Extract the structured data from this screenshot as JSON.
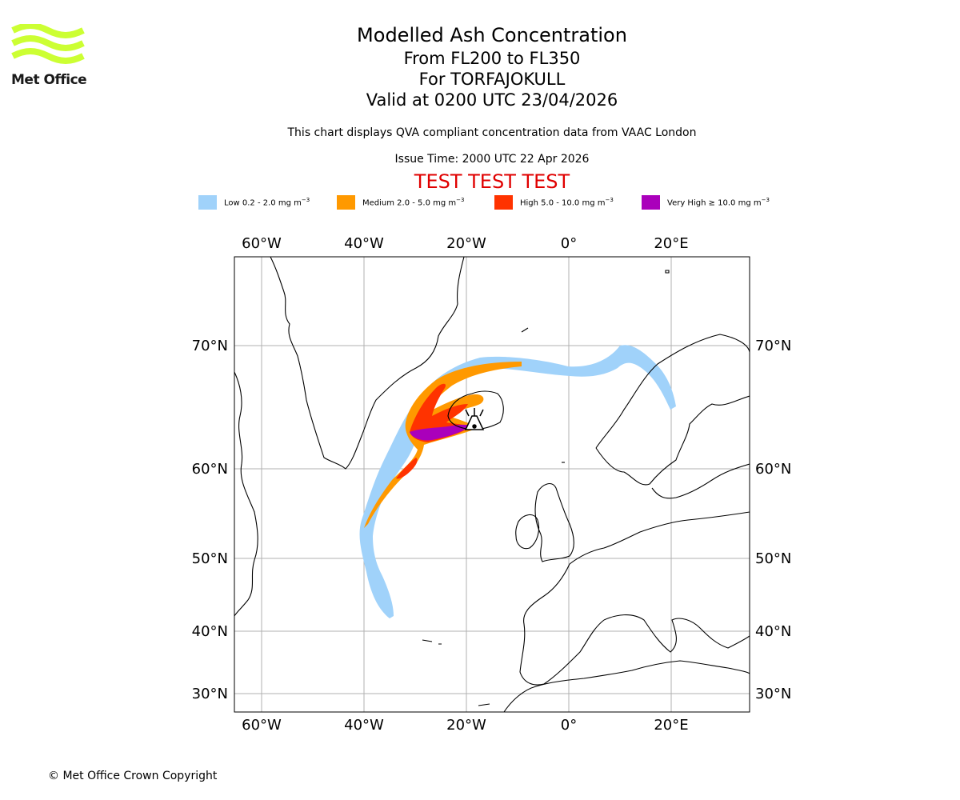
{
  "logo": {
    "text": "Met Office",
    "icon": "met-office-wave-logo",
    "color": "#ccff33"
  },
  "titles": {
    "main": "Modelled Ash Concentration",
    "levels": "From FL200 to FL350",
    "volcano": "For TORFAJOKULL",
    "valid": "Valid at 0200 UTC 23/04/2026"
  },
  "subtitle": "This chart displays QVA compliant concentration data from VAAC London",
  "issue_time": "Issue Time: 2000 UTC 22 Apr 2026",
  "test_banner": "TEST TEST TEST",
  "legend": [
    {
      "label": "Low 0.2 - 2.0 mg m",
      "color": "#a0d2fa"
    },
    {
      "label": "Medium 2.0 - 5.0 mg m",
      "color": "#ff9900"
    },
    {
      "label": "High 5.0 - 10.0 mg m",
      "color": "#ff3300"
    },
    {
      "label": "Very High ≥ 10.0 mg m",
      "color": "#aa00bb"
    }
  ],
  "legend_unit_exponent": "−3",
  "map": {
    "projection": "Polar stereographic (lat/lon graticule)",
    "lon_ticks": [
      "60°W",
      "40°W",
      "20°W",
      "0°",
      "20°E"
    ],
    "lat_ticks": [
      "70°N",
      "60°N",
      "50°N",
      "40°N",
      "30°N"
    ],
    "gridlines": true,
    "volcano_symbol": "volcano-icon"
  },
  "copyright": "© Met Office Crown Copyright"
}
